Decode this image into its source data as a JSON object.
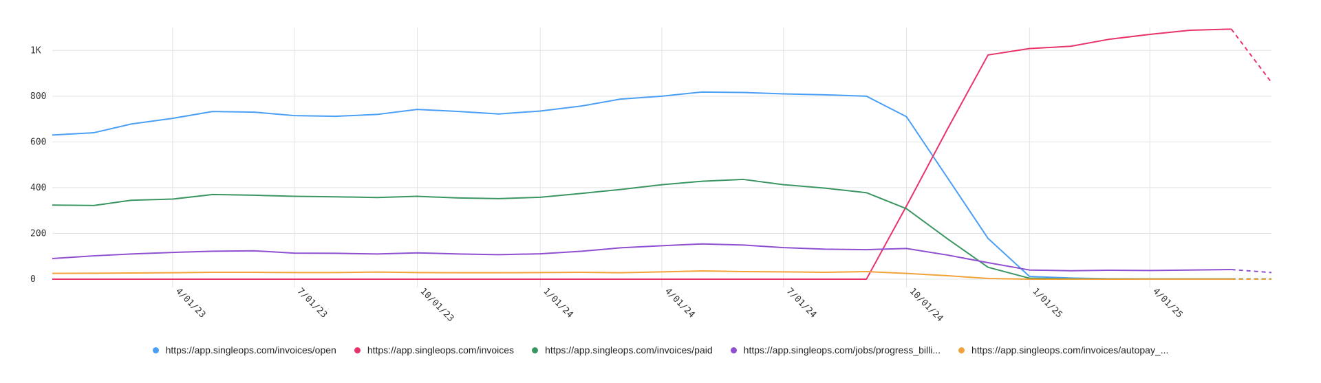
{
  "chart_data": {
    "type": "line",
    "title": "",
    "xlabel": "",
    "ylabel": "",
    "ylim": [
      0,
      1100
    ],
    "yticks": [
      0,
      200,
      400,
      600,
      800,
      1000
    ],
    "ytick_labels": [
      "0",
      "200",
      "400",
      "600",
      "800",
      "1K"
    ],
    "x": [
      "2023-01-01",
      "2023-02-01",
      "2023-03-01",
      "2023-04-01",
      "2023-05-01",
      "2023-06-01",
      "2023-07-01",
      "2023-08-01",
      "2023-09-01",
      "2023-10-01",
      "2023-11-01",
      "2023-12-01",
      "2024-01-01",
      "2024-02-01",
      "2024-03-01",
      "2024-04-01",
      "2024-05-01",
      "2024-06-01",
      "2024-07-01",
      "2024-08-01",
      "2024-09-01",
      "2024-10-01",
      "2024-11-01",
      "2024-12-01",
      "2025-01-01",
      "2025-02-01",
      "2025-03-01",
      "2025-04-01",
      "2025-05-01",
      "2025-06-01",
      "2025-07-01"
    ],
    "xticks": [
      "2023-04-01",
      "2023-07-01",
      "2023-10-01",
      "2024-01-01",
      "2024-04-01",
      "2024-07-01",
      "2024-10-01",
      "2025-01-01",
      "2025-04-01"
    ],
    "xtick_labels": [
      "4/01/23",
      "7/01/23",
      "10/01/23",
      "1/01/24",
      "4/01/24",
      "7/01/24",
      "10/01/24",
      "1/01/25",
      "4/01/25"
    ],
    "projection_from": "2025-06-01",
    "grid": true,
    "legend_position": "bottom",
    "series": [
      {
        "name": "https://app.singleops.com/invoices/open",
        "color": "#4a9ff5",
        "values": [
          630,
          640,
          678,
          703,
          733,
          730,
          715,
          712,
          720,
          742,
          733,
          722,
          735,
          757,
          787,
          800,
          818,
          816,
          810,
          806,
          800,
          710,
          440,
          178,
          12,
          5,
          2,
          1,
          1,
          1,
          1
        ]
      },
      {
        "name": "https://app.singleops.com/invoices",
        "color": "#e8336a",
        "values": [
          0,
          0,
          0,
          0,
          0,
          0,
          0,
          0,
          0,
          0,
          0,
          0,
          0,
          0,
          0,
          0,
          0,
          0,
          0,
          0,
          0,
          320,
          660,
          980,
          1008,
          1018,
          1048,
          1070,
          1088,
          1093,
          860
        ]
      },
      {
        "name": "https://app.singleops.com/invoices/paid",
        "color": "#3a9661",
        "values": [
          324,
          322,
          345,
          350,
          370,
          367,
          362,
          360,
          357,
          362,
          355,
          352,
          358,
          375,
          392,
          413,
          428,
          436,
          413,
          398,
          378,
          308,
          175,
          52,
          4,
          2,
          1,
          1,
          1,
          1,
          1
        ]
      },
      {
        "name": "https://app.singleops.com/jobs/progress_billi...",
        "color": "#8e4fd1",
        "values": [
          90,
          102,
          110,
          117,
          122,
          124,
          114,
          113,
          110,
          115,
          110,
          107,
          111,
          122,
          137,
          146,
          154,
          149,
          138,
          131,
          129,
          134,
          105,
          72,
          40,
          37,
          39,
          38,
          40,
          42,
          29
        ]
      },
      {
        "name": "https://app.singleops.com/invoices/autopay_...",
        "color": "#f2a23a",
        "values": [
          25,
          26,
          27,
          28,
          30,
          30,
          29,
          29,
          31,
          29,
          28,
          28,
          29,
          30,
          28,
          32,
          36,
          33,
          32,
          30,
          33,
          25,
          15,
          3,
          0,
          0,
          0,
          0,
          0,
          0,
          0
        ]
      }
    ]
  }
}
